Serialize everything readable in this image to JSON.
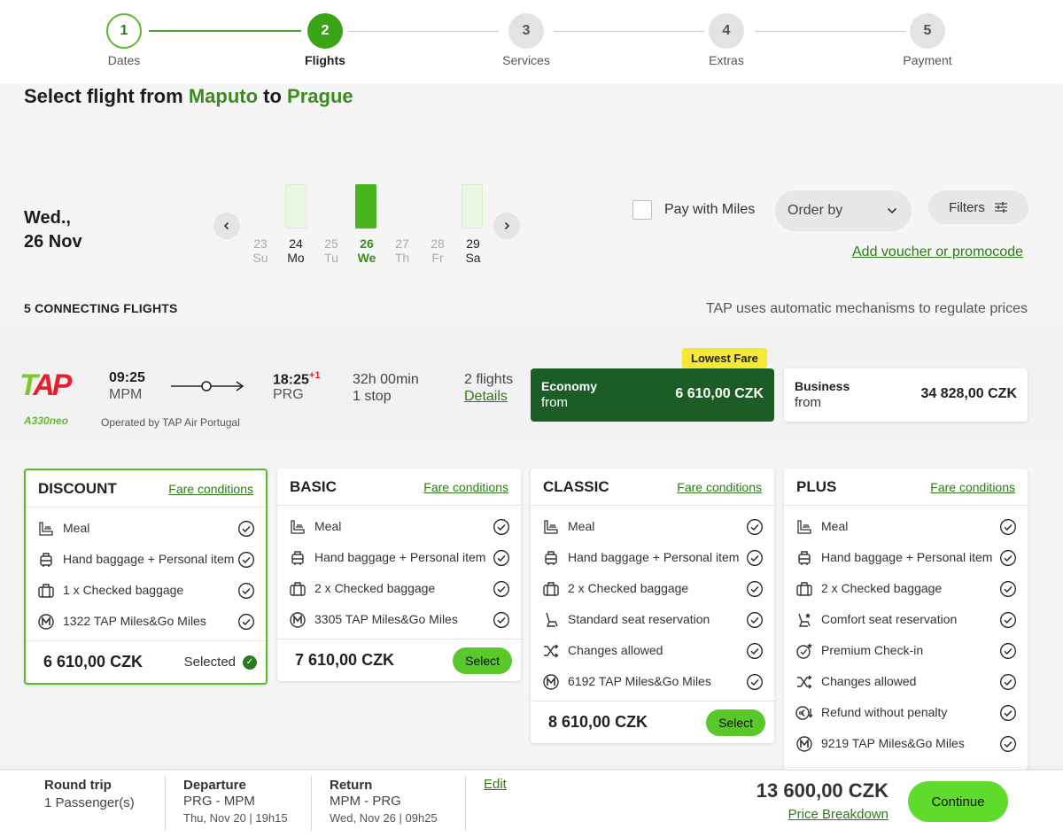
{
  "stepper": {
    "steps": [
      {
        "num": "1",
        "label": "Dates"
      },
      {
        "num": "2",
        "label": "Flights"
      },
      {
        "num": "3",
        "label": "Services"
      },
      {
        "num": "4",
        "label": "Extras"
      },
      {
        "num": "5",
        "label": "Payment"
      }
    ]
  },
  "title": {
    "prefix": "Select flight from",
    "origin": "Maputo",
    "mid": "to",
    "destination": "Prague"
  },
  "date_picker": {
    "selected_line1": "Wed.,",
    "selected_line2": "26 Nov",
    "prev_icon": "chevron-left-icon",
    "next_icon": "chevron-right-icon",
    "days": [
      {
        "num": "23",
        "dow": "Su"
      },
      {
        "num": "24",
        "dow": "Mo"
      },
      {
        "num": "25",
        "dow": "Tu"
      },
      {
        "num": "26",
        "dow": "We"
      },
      {
        "num": "27",
        "dow": "Th"
      },
      {
        "num": "28",
        "dow": "Fr"
      },
      {
        "num": "29",
        "dow": "Sa"
      }
    ]
  },
  "controls": {
    "pay_miles": "Pay with Miles",
    "order_by": "Order by",
    "filters": "Filters",
    "voucher": "Add voucher or promocode"
  },
  "results": {
    "count": "5 CONNECTING FLIGHTS",
    "note": "TAP uses automatic mechanisms to regulate prices"
  },
  "flight": {
    "logo_t": "T",
    "logo_ap": "AP",
    "aircraft": "A330neo",
    "operated_by": "Operated by TAP Air Portugal",
    "dep_time": "09:25",
    "dep_code": "MPM",
    "arr_time": "18:25",
    "arr_offset": "+1",
    "arr_code": "PRG",
    "duration": "32h 00min",
    "stops": "1 stop",
    "flights": "2 flights",
    "details": "Details",
    "lowest_fare": "Lowest Fare",
    "economy": {
      "cls": "Economy",
      "from": "from",
      "price": "6 610,00 CZK"
    },
    "business": {
      "cls": "Business",
      "from": "from",
      "price": "34 828,00 CZK"
    }
  },
  "fares": [
    {
      "name": "DISCOUNT",
      "conditions": "Fare conditions",
      "price": "6 610,00 CZK",
      "action": "Selected",
      "features": [
        {
          "icon": "meal-icon",
          "text": "Meal"
        },
        {
          "icon": "hand-baggage-icon",
          "text": "Hand baggage + Personal item"
        },
        {
          "icon": "checked-baggage-icon",
          "text": "1 x Checked baggage"
        },
        {
          "icon": "miles-icon",
          "text": "1322 TAP Miles&Go Miles"
        }
      ]
    },
    {
      "name": "BASIC",
      "conditions": "Fare conditions",
      "price": "7 610,00 CZK",
      "action": "Select",
      "features": [
        {
          "icon": "meal-icon",
          "text": "Meal"
        },
        {
          "icon": "hand-baggage-icon",
          "text": "Hand baggage + Personal item"
        },
        {
          "icon": "checked-baggage-icon",
          "text": "2 x Checked baggage"
        },
        {
          "icon": "miles-icon",
          "text": "3305 TAP Miles&Go Miles"
        }
      ]
    },
    {
      "name": "CLASSIC",
      "conditions": "Fare conditions",
      "price": "8 610,00 CZK",
      "action": "Select",
      "features": [
        {
          "icon": "meal-icon",
          "text": "Meal"
        },
        {
          "icon": "hand-baggage-icon",
          "text": "Hand baggage + Personal item"
        },
        {
          "icon": "checked-baggage-icon",
          "text": "2 x Checked baggage"
        },
        {
          "icon": "seat-icon",
          "text": "Standard seat reservation"
        },
        {
          "icon": "shuffle-icon",
          "text": "Changes allowed"
        },
        {
          "icon": "miles-icon",
          "text": "6192 TAP Miles&Go Miles"
        }
      ]
    },
    {
      "name": "PLUS",
      "conditions": "Fare conditions",
      "price": "",
      "action": "",
      "features": [
        {
          "icon": "meal-icon",
          "text": "Meal"
        },
        {
          "icon": "hand-baggage-icon",
          "text": "Hand baggage + Personal item"
        },
        {
          "icon": "checked-baggage-icon",
          "text": "2 x Checked baggage"
        },
        {
          "icon": "comfort-seat-icon",
          "text": "Comfort seat reservation"
        },
        {
          "icon": "premium-checkin-icon",
          "text": "Premium Check-in"
        },
        {
          "icon": "shuffle-icon",
          "text": "Changes allowed"
        },
        {
          "icon": "refund-icon",
          "text": "Refund without penalty"
        },
        {
          "icon": "miles-icon",
          "text": "9219 TAP Miles&Go Miles"
        }
      ]
    }
  ],
  "summary": {
    "trip_type": "Round trip",
    "passengers": "1 Passenger(s)",
    "departure_label": "Departure",
    "departure_route": "PRG - MPM",
    "departure_date": "Thu, Nov 20 | 19h15",
    "return_label": "Return",
    "return_route": "MPM - PRG",
    "return_date": "Wed, Nov 26 | 09h25",
    "edit": "Edit",
    "total": "13 600,00 CZK",
    "breakdown": "Price Breakdown",
    "continue": "Continue"
  },
  "colors": {
    "brand_green": "#3aa417",
    "dark_green": "#1b5c27",
    "cta_green": "#5fdb2c",
    "tap_red": "#e5202e"
  }
}
